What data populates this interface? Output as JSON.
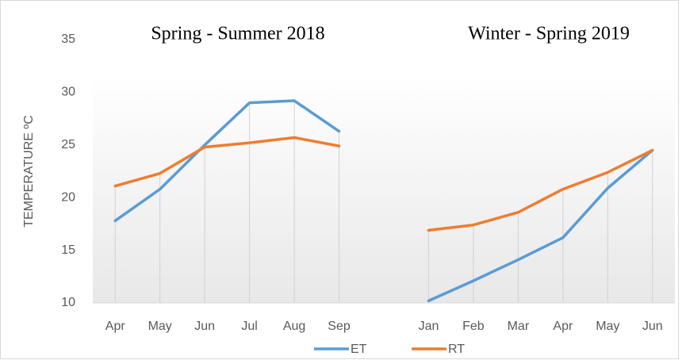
{
  "chart_data": {
    "type": "line",
    "annotations": [
      "Spring - Summer 2018",
      "Winter - Spring  2019"
    ],
    "y_label": "TEMPERATURE ºC",
    "categories": [
      "Apr",
      "May",
      "Jun",
      "Jul",
      "Aug",
      "Sep",
      null,
      "Jan",
      "Feb",
      "Mar",
      "Apr",
      "May",
      "Jun"
    ],
    "series": [
      {
        "name": "ET",
        "color": "#5b9bd5",
        "values": [
          17.8,
          20.8,
          25.0,
          29.0,
          29.2,
          26.3,
          null,
          10.2,
          12.1,
          14.1,
          16.2,
          20.9,
          24.5
        ]
      },
      {
        "name": "RT",
        "color": "#ed7d31",
        "values": [
          21.1,
          22.3,
          24.8,
          25.2,
          25.7,
          24.9,
          null,
          16.9,
          17.4,
          18.6,
          20.8,
          22.4,
          24.5
        ]
      }
    ],
    "ylim": [
      10,
      35
    ],
    "yticks": [
      10,
      15,
      20,
      25,
      30,
      35
    ],
    "drop_lines": true,
    "legend": "bottom"
  }
}
